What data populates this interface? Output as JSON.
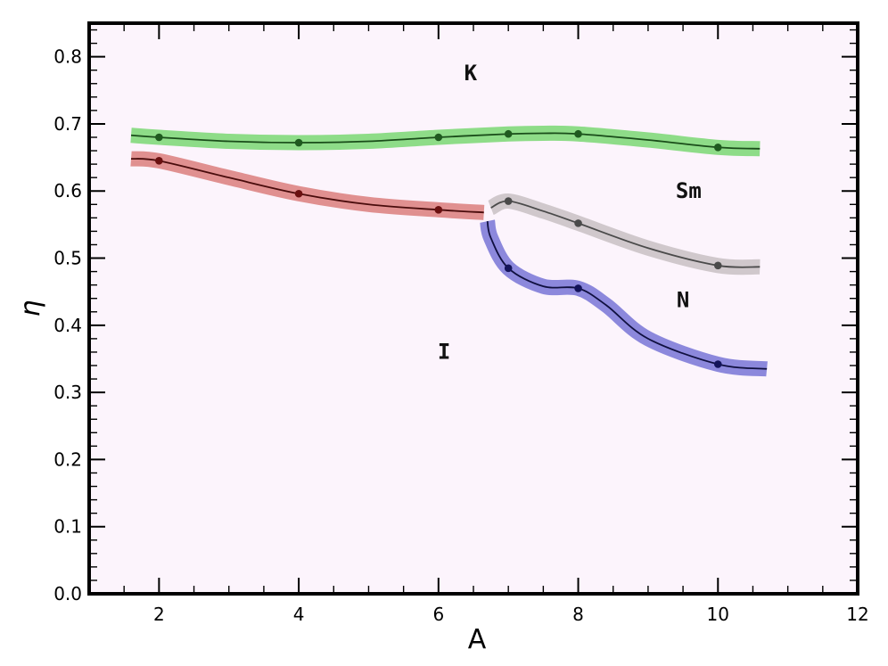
{
  "chart_data": {
    "type": "line",
    "xlabel": "A",
    "ylabel": "η",
    "xlim": [
      1,
      12
    ],
    "ylim": [
      0.0,
      0.85
    ],
    "xticks": [
      2,
      4,
      6,
      8,
      10,
      12
    ],
    "yticks": [
      0.0,
      0.1,
      0.2,
      0.3,
      0.4,
      0.5,
      0.6,
      0.7,
      0.8
    ],
    "plot_background": "#fcf4fc",
    "series": [
      {
        "id": "k-boundary",
        "band_color": "#8edc88",
        "line_color": "#1a4d1a",
        "point_color": "#1f5a1f",
        "points": [
          [
            2,
            0.68
          ],
          [
            4,
            0.672
          ],
          [
            6,
            0.68
          ],
          [
            7,
            0.685
          ],
          [
            8,
            0.685
          ],
          [
            10,
            0.665
          ]
        ],
        "curve": [
          [
            1.6,
            0.683
          ],
          [
            2,
            0.68
          ],
          [
            3,
            0.674
          ],
          [
            4,
            0.672
          ],
          [
            5,
            0.674
          ],
          [
            6,
            0.68
          ],
          [
            7,
            0.685
          ],
          [
            7.5,
            0.686
          ],
          [
            8,
            0.685
          ],
          [
            9,
            0.676
          ],
          [
            10,
            0.665
          ],
          [
            10.6,
            0.663
          ]
        ]
      },
      {
        "id": "i-boundary",
        "band_color": "#e09090",
        "line_color": "#4a0c0c",
        "point_color": "#6a1010",
        "points": [
          [
            2,
            0.645
          ],
          [
            4,
            0.596
          ],
          [
            6,
            0.572
          ]
        ],
        "curve": [
          [
            1.6,
            0.648
          ],
          [
            2,
            0.645
          ],
          [
            3,
            0.62
          ],
          [
            4,
            0.596
          ],
          [
            5,
            0.58
          ],
          [
            6,
            0.572
          ],
          [
            6.65,
            0.568
          ]
        ]
      },
      {
        "id": "sm-boundary",
        "band_color": "#d0c8cc",
        "line_color": "#4a4a4a",
        "point_color": "#4a4a4a",
        "points": [
          [
            7,
            0.585
          ],
          [
            8,
            0.552
          ],
          [
            10,
            0.489
          ]
        ],
        "curve": [
          [
            6.75,
            0.575
          ],
          [
            7,
            0.585
          ],
          [
            7.5,
            0.57
          ],
          [
            8,
            0.552
          ],
          [
            9,
            0.515
          ],
          [
            10,
            0.489
          ],
          [
            10.6,
            0.487
          ]
        ]
      },
      {
        "id": "n-boundary",
        "band_color": "#8c88dc",
        "line_color": "#101040",
        "point_color": "#14145a",
        "points": [
          [
            7,
            0.485
          ],
          [
            8,
            0.455
          ],
          [
            10,
            0.342
          ]
        ],
        "curve": [
          [
            6.7,
            0.555
          ],
          [
            6.75,
            0.53
          ],
          [
            7,
            0.485
          ],
          [
            7.5,
            0.458
          ],
          [
            8,
            0.455
          ],
          [
            8.4,
            0.43
          ],
          [
            9,
            0.38
          ],
          [
            10,
            0.342
          ],
          [
            10.7,
            0.335
          ]
        ]
      }
    ],
    "region_labels": [
      {
        "text": "K",
        "x": 6.46,
        "y": 0.765
      },
      {
        "text": "Sm",
        "x": 9.58,
        "y": 0.59
      },
      {
        "text": "N",
        "x": 9.5,
        "y": 0.427
      },
      {
        "text": "I",
        "x": 6.08,
        "y": 0.35
      }
    ]
  }
}
